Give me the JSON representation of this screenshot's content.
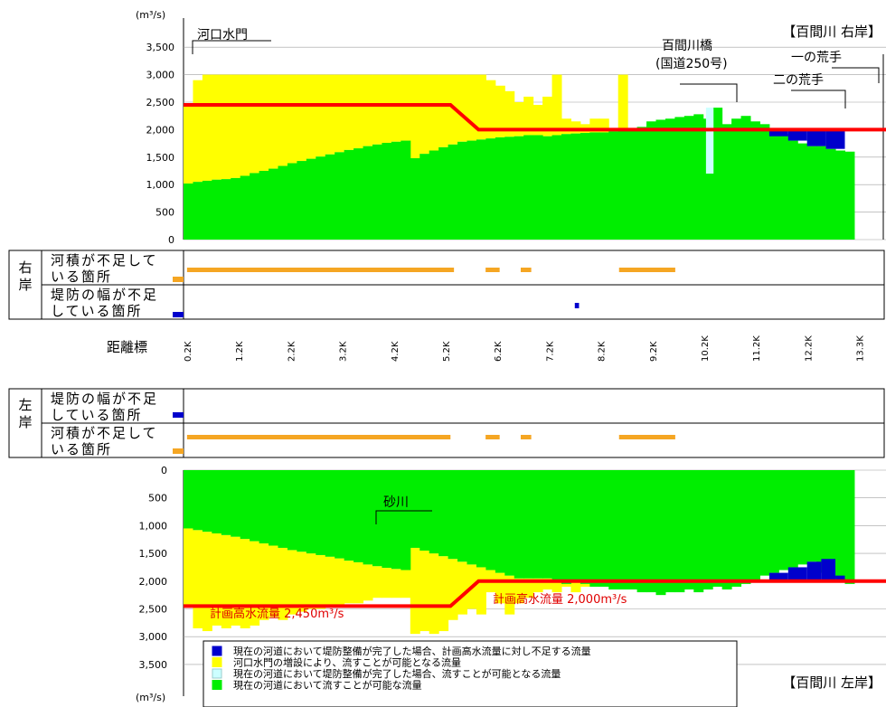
{
  "chart_data": [
    {
      "type": "area",
      "bank": "right",
      "title": "【百間川 右岸】",
      "y_unit": "(m³/s)",
      "yticks": [
        "0",
        "500",
        "1,000",
        "1,500",
        "2,000",
        "2,500",
        "3,000",
        "3,500"
      ],
      "ylim": [
        0,
        3800
      ],
      "plan_flow": [
        [
          0,
          2450
        ],
        [
          38,
          2450
        ],
        [
          42,
          2000
        ],
        [
          100,
          2000
        ]
      ],
      "current_flow": [
        1020,
        1050,
        1070,
        1090,
        1100,
        1120,
        1160,
        1210,
        1250,
        1290,
        1340,
        1390,
        1430,
        1470,
        1510,
        1550,
        1590,
        1630,
        1660,
        1700,
        1730,
        1760,
        1780,
        1800,
        1480,
        1560,
        1620,
        1680,
        1730,
        1780,
        1800,
        1820,
        1840,
        1860,
        1870,
        1880,
        1900,
        1900,
        1880,
        1900,
        1920,
        1930,
        1940,
        1950,
        1950,
        1970,
        1980,
        2000,
        2050,
        2150,
        2180,
        2200,
        2230,
        2250,
        2280,
        2200,
        2400,
        2100,
        2200,
        2250,
        2150,
        2100,
        2020,
        1920,
        1800,
        1750,
        1700,
        1700,
        1650,
        1620,
        1600
      ],
      "upper_flow": [
        2450,
        2900,
        3000,
        3000,
        3000,
        3000,
        3000,
        3000,
        3000,
        3000,
        3000,
        3000,
        3000,
        3000,
        3000,
        3000,
        3000,
        3000,
        3000,
        3000,
        3000,
        3000,
        3000,
        3000,
        3000,
        3000,
        3000,
        3000,
        3000,
        3000,
        3000,
        3000,
        2900,
        2800,
        2700,
        2500,
        2600,
        2450,
        2600,
        3000,
        2200,
        2150,
        2100,
        2200,
        2200,
        1900,
        3000,
        2000,
        null,
        null,
        null,
        null,
        null,
        null,
        null,
        null,
        null,
        null,
        null,
        null,
        null,
        null,
        null,
        null,
        null,
        null,
        null,
        null,
        null,
        null,
        null
      ],
      "light_blue": {
        "range": [
          55.3,
          56.1
        ],
        "from": 1200,
        "to": 2400
      },
      "shortfall_segments": [
        [
          62,
          64,
          1880,
          2000
        ],
        [
          64,
          66,
          1800,
          2000
        ],
        [
          66,
          68,
          1700,
          2000
        ],
        [
          68,
          70,
          1650,
          2000
        ]
      ],
      "annotations": [
        "河口水門",
        "百間川橋",
        "(国道250号)",
        "一の荒手",
        "二の荒手"
      ]
    },
    {
      "type": "area",
      "bank": "left",
      "title": "【百間川 左岸】",
      "y_unit": "(m³/s)",
      "yticks": [
        "0",
        "500",
        "1,000",
        "1,500",
        "2,000",
        "2,500",
        "3,000",
        "3,500"
      ],
      "ylim": [
        0,
        3800
      ],
      "plan_flow": [
        [
          0,
          2450
        ],
        [
          38,
          2450
        ],
        [
          42,
          2000
        ],
        [
          100,
          2000
        ]
      ],
      "current_flow": [
        1050,
        1080,
        1110,
        1140,
        1170,
        1200,
        1240,
        1280,
        1320,
        1360,
        1400,
        1440,
        1470,
        1500,
        1530,
        1560,
        1590,
        1630,
        1660,
        1700,
        1730,
        1760,
        1780,
        1800,
        1400,
        1450,
        1500,
        1550,
        1600,
        1650,
        1700,
        1750,
        1800,
        1850,
        1900,
        1950,
        1950,
        1950,
        1950,
        2000,
        2050,
        2000,
        2050,
        2100,
        2100,
        2150,
        2150,
        2150,
        2200,
        2200,
        2250,
        2200,
        2200,
        2150,
        2200,
        2150,
        2100,
        2150,
        2100,
        2050,
        2000,
        1900,
        1850,
        1800,
        1750,
        1700,
        1650,
        1850,
        1900,
        1950,
        2050
      ],
      "upper_flow": [
        2450,
        2850,
        2900,
        2800,
        2850,
        2800,
        2850,
        2800,
        2700,
        2650,
        2700,
        2600,
        2550,
        2500,
        2500,
        2450,
        2450,
        2400,
        2400,
        2350,
        2300,
        2300,
        2300,
        2300,
        2950,
        2900,
        2950,
        2900,
        2700,
        2600,
        2500,
        2600,
        2200,
        2400,
        2600,
        2400,
        2300,
        2200,
        2150,
        2200,
        2100,
        2200,
        2100,
        2050,
        2050,
        2050,
        2000,
        2000,
        null,
        null,
        null,
        null,
        null,
        null,
        null,
        null,
        null,
        null,
        null,
        null,
        null,
        null,
        null,
        null,
        null,
        null,
        null,
        null,
        null,
        null,
        null
      ],
      "annotations": [
        "砂川"
      ],
      "plan_labels": [
        "計画高水流量 2,450m³/s",
        "計画高水流量 2,000m³/s"
      ]
    }
  ],
  "distance_label": "距離標",
  "xticks": [
    "0.2K",
    "1.2K",
    "2.2K",
    "3.2K",
    "4.2K",
    "5.2K",
    "6.2K",
    "7.2K",
    "8.2K",
    "9.2K",
    "10.2K",
    "11.2K",
    "12.2K",
    "13.3K"
  ],
  "right_bank": {
    "label": "右岸",
    "row1": "河積が不足している箇所",
    "row2": "堤防の幅が不足している箇所",
    "deficit_segments": [
      [
        0.5,
        38.5
      ],
      [
        43,
        45
      ],
      [
        48,
        49.5
      ],
      [
        62,
        70
      ]
    ],
    "width_marks": [
      [
        55.7,
        56.3
      ]
    ]
  },
  "left_bank": {
    "label": "左岸",
    "row1": "堤防の幅が不足している箇所",
    "row2": "河積が不足している箇所",
    "deficit_segments": [
      [
        0.5,
        38
      ],
      [
        43,
        45
      ],
      [
        48,
        49.5
      ],
      [
        62,
        70
      ]
    ]
  },
  "legend": [
    {
      "color": "#0000cc",
      "label": "現在の河道において堤防整備が完了した場合、計画高水流量に対し不足する流量"
    },
    {
      "color": "#ffff00",
      "label": "河口水門の増設により、流すことが可能となる流量"
    },
    {
      "color": "#ccffff",
      "label": "現在の河道において堤防整備が完了した場合、流すことが可能となる流量"
    },
    {
      "color": "#00ee00",
      "label": "現在の河道において流すことが可能な流量"
    }
  ],
  "colors": {
    "current": "#00ee00",
    "yellow": "#ffff00",
    "shortfall": "#0000cc",
    "lightblue": "#ccffff",
    "plan": "#ff0000",
    "deficit": "#f5a623",
    "grid": "#a0a0a0"
  }
}
